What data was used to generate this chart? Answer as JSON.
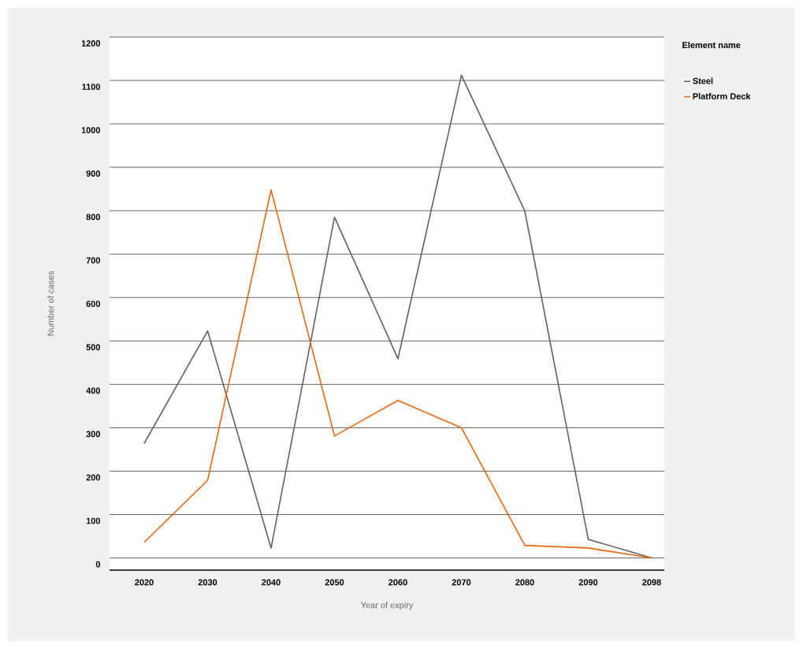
{
  "chart_data": {
    "type": "line",
    "xlabel": "Year of expiry",
    "ylabel": "Number of cases",
    "legend_title": "Element name",
    "categories": [
      "2020",
      "2030",
      "2040",
      "2050",
      "2060",
      "2070",
      "2080",
      "2090",
      "2098"
    ],
    "series": [
      {
        "name": "Steel",
        "color": "#5f5f66",
        "values": [
          264,
          523,
          23,
          785,
          459,
          1112,
          799,
          43,
          0
        ]
      },
      {
        "name": "Platform Deck",
        "color": "#e8670c",
        "values": [
          36,
          179,
          848,
          281,
          363,
          300,
          29,
          23,
          0
        ]
      }
    ],
    "ylim": [
      -28,
      1200
    ],
    "yticks": [
      0,
      100,
      200,
      300,
      400,
      500,
      600,
      700,
      800,
      900,
      1000,
      1100,
      1200
    ],
    "grid": "y",
    "legend": "top right",
    "marker": "none",
    "line_style": "solid"
  }
}
